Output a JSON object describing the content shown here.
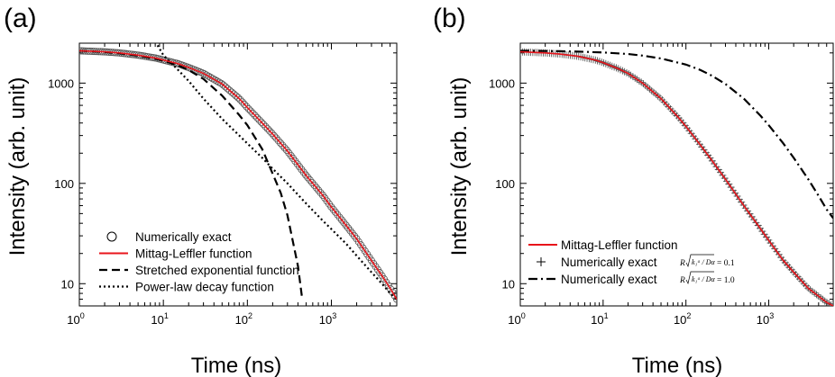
{
  "chart_data": [
    {
      "type": "line",
      "panel_label": "(a)",
      "xlabel": "Time (ns)",
      "ylabel": "Intensity (arb. unit)",
      "xscale": "log",
      "yscale": "log",
      "xlim": [
        1,
        6000
      ],
      "ylim": [
        6,
        2500
      ],
      "xticks": [
        {
          "base": "10",
          "exp": "0",
          "value": 1
        },
        {
          "base": "10",
          "exp": "1",
          "value": 10
        },
        {
          "base": "10",
          "exp": "2",
          "value": 100
        },
        {
          "base": "10",
          "exp": "3",
          "value": 1000
        }
      ],
      "yticks": [
        {
          "label": "10",
          "value": 10
        },
        {
          "label": "100",
          "value": 100
        },
        {
          "label": "1000",
          "value": 1000
        }
      ],
      "legend_position": "bottom-left",
      "series": [
        {
          "name": "Numerically exact",
          "style": "circles",
          "color": "#000000",
          "x": [
            1,
            2,
            3,
            5,
            8,
            10,
            15,
            20,
            30,
            50,
            80,
            100,
            150,
            200,
            300,
            500,
            800,
            1000,
            1500,
            2000,
            3000,
            4000,
            5000,
            6000
          ],
          "y": [
            2100,
            2050,
            2000,
            1900,
            1780,
            1700,
            1560,
            1430,
            1250,
            980,
            700,
            570,
            400,
            310,
            210,
            120,
            75,
            58,
            38,
            28,
            17,
            12,
            9,
            7
          ]
        },
        {
          "name": "Mittag-Leffler function",
          "style": "solid",
          "color": "#e8141b",
          "x": [
            1,
            2,
            3,
            5,
            8,
            10,
            15,
            20,
            30,
            50,
            80,
            100,
            150,
            200,
            300,
            500,
            800,
            1000,
            1500,
            2000,
            3000,
            4000,
            5000,
            6000
          ],
          "y": [
            2100,
            2050,
            2000,
            1900,
            1780,
            1700,
            1560,
            1430,
            1250,
            980,
            700,
            570,
            400,
            310,
            210,
            120,
            75,
            58,
            38,
            28,
            17,
            12,
            9,
            7
          ]
        },
        {
          "name": "Stretched exponential function",
          "style": "dashed",
          "color": "#000000",
          "x": [
            1,
            2,
            3,
            5,
            8,
            10,
            15,
            20,
            30,
            50,
            80,
            100,
            150,
            200,
            250,
            300,
            400,
            450
          ],
          "y": [
            2100,
            2040,
            1980,
            1880,
            1750,
            1670,
            1500,
            1350,
            1100,
            750,
            480,
            380,
            220,
            125,
            80,
            48,
            15,
            7
          ]
        },
        {
          "name": "Power-law decay function",
          "style": "dotted",
          "color": "#000000",
          "x": [
            8,
            10,
            15,
            20,
            30,
            50,
            80,
            100,
            150,
            200,
            300,
            500,
            800,
            1000,
            1500,
            2000,
            3000,
            4000,
            5000,
            6000
          ],
          "y": [
            2600,
            1900,
            1350,
            1050,
            700,
            440,
            300,
            250,
            180,
            140,
            100,
            63,
            42,
            35,
            25,
            19,
            13,
            10,
            8,
            7
          ]
        }
      ]
    },
    {
      "type": "line",
      "panel_label": "(b)",
      "xlabel": "Time (ns)",
      "ylabel": "Intensity (arb. unit)",
      "xscale": "log",
      "yscale": "log",
      "xlim": [
        1,
        6000
      ],
      "ylim": [
        6,
        2500
      ],
      "xticks": [
        {
          "base": "10",
          "exp": "0",
          "value": 1
        },
        {
          "base": "10",
          "exp": "1",
          "value": 10
        },
        {
          "base": "10",
          "exp": "2",
          "value": 100
        },
        {
          "base": "10",
          "exp": "3",
          "value": 1000
        }
      ],
      "yticks": [
        {
          "label": "10",
          "value": 10
        },
        {
          "label": "100",
          "value": 100
        },
        {
          "label": "1000",
          "value": 1000
        }
      ],
      "legend_position": "bottom-left",
      "series": [
        {
          "name": "Mittag-Leffler function",
          "style": "solid",
          "color": "#e8141b",
          "x": [
            1,
            2,
            3,
            5,
            8,
            10,
            15,
            20,
            30,
            50,
            80,
            100,
            150,
            200,
            300,
            500,
            800,
            1000,
            1500,
            2000,
            3000,
            4000,
            5000,
            6000
          ],
          "y": [
            2050,
            2000,
            1950,
            1850,
            1700,
            1600,
            1400,
            1250,
            1000,
            700,
            460,
            370,
            240,
            175,
            110,
            60,
            35,
            27,
            17,
            13,
            9,
            7.5,
            6.5,
            6
          ]
        },
        {
          "name": "Numerically exact",
          "condition": "R√(k₁^α / D_α) = 0.1",
          "style": "plus",
          "color": "#000000",
          "x": [
            1,
            2,
            3,
            5,
            8,
            10,
            15,
            20,
            30,
            50,
            80,
            100,
            150,
            200,
            300,
            500,
            800,
            1000,
            1500,
            2000,
            3000,
            4000,
            5000,
            6000
          ],
          "y": [
            2050,
            2000,
            1950,
            1850,
            1700,
            1600,
            1400,
            1250,
            1000,
            700,
            460,
            370,
            240,
            175,
            110,
            60,
            35,
            27,
            17,
            13,
            9,
            7.5,
            6.5,
            6
          ]
        },
        {
          "name": "Numerically exact",
          "condition": "R√(k₁^α / D_α) = 1.0",
          "style": "dashdot",
          "color": "#000000",
          "x": [
            1,
            2,
            3,
            5,
            10,
            20,
            30,
            50,
            100,
            150,
            200,
            300,
            500,
            800,
            1000,
            1500,
            2000,
            3000,
            4000,
            5000,
            6000
          ],
          "y": [
            2100,
            2090,
            2080,
            2060,
            2020,
            1950,
            1880,
            1760,
            1530,
            1350,
            1200,
            980,
            700,
            470,
            380,
            250,
            180,
            110,
            75,
            55,
            45
          ]
        }
      ]
    }
  ],
  "legends": {
    "a": {
      "items": [
        {
          "text": "Numerically exact",
          "symbol": "circle"
        },
        {
          "text": "Mittag-Leffler function",
          "symbol": "red-line"
        },
        {
          "text": "Stretched exponential function",
          "symbol": "dashed-line"
        },
        {
          "text": "Power-law decay function",
          "symbol": "dotted-line"
        }
      ]
    },
    "b": {
      "items": [
        {
          "text": "Mittag-Leffler function",
          "symbol": "red-line",
          "condition": ""
        },
        {
          "text": "Numerically exact",
          "symbol": "plus",
          "condition_prefix": "R",
          "condition_value": "= 0.1"
        },
        {
          "text": "Numerically exact",
          "symbol": "dashdot-line",
          "condition_prefix": "R",
          "condition_value": "= 1.0"
        }
      ]
    }
  }
}
